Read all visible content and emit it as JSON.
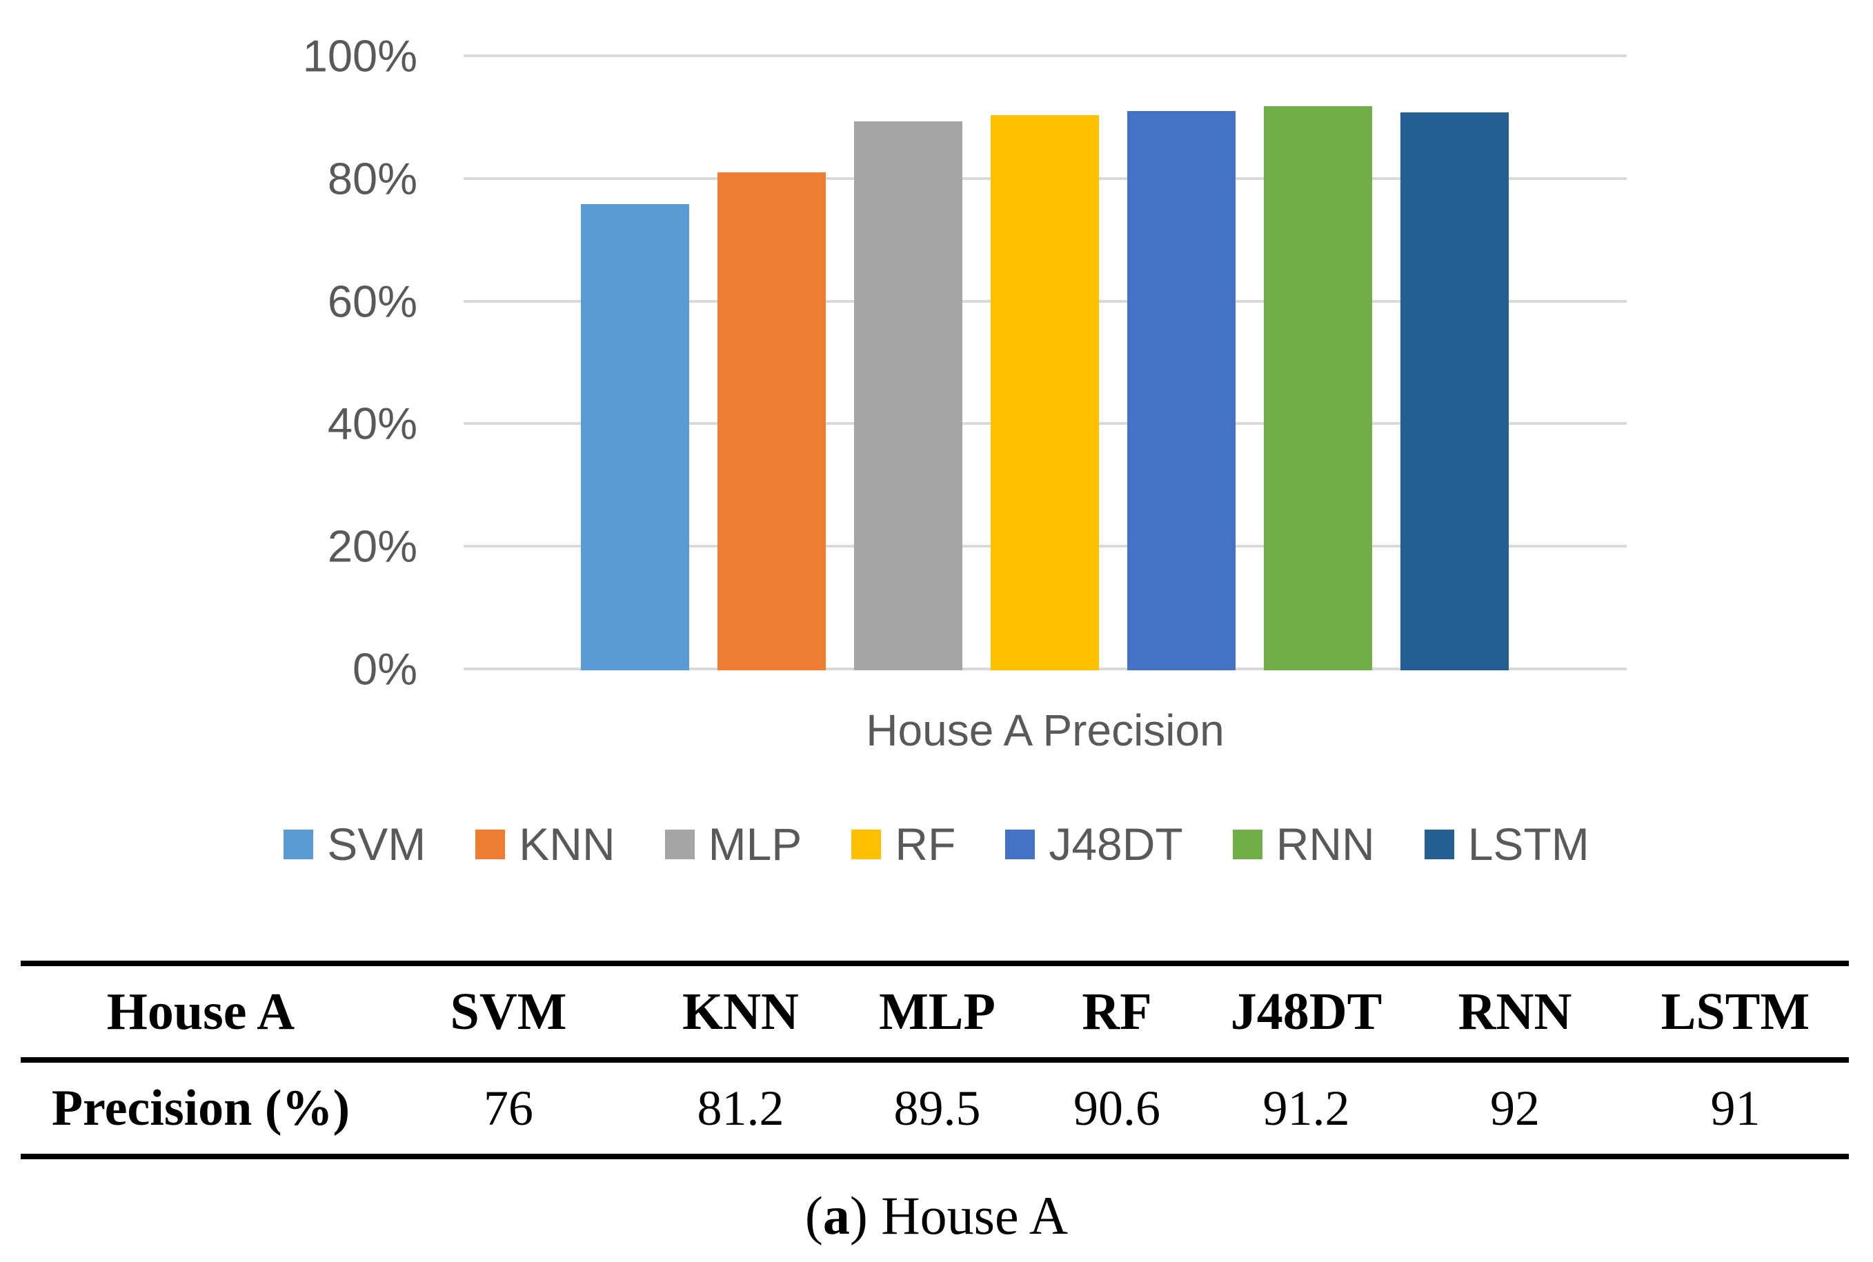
{
  "chart": {
    "title": "House A Precision",
    "text_color": "#595959",
    "gridline_color": "#D9D9D9",
    "y_axis": {
      "tick_values": [
        100,
        80,
        60,
        40,
        20,
        0
      ],
      "tick_labels": [
        "100%",
        "80%",
        "60%",
        "40%",
        "20%",
        "0%"
      ]
    },
    "series": [
      {
        "label": "SVM",
        "value": 76,
        "color": "#5B9BD5"
      },
      {
        "label": "KNN",
        "value": 81.2,
        "color": "#ED7D31"
      },
      {
        "label": "MLP",
        "value": 89.5,
        "color": "#A5A5A5"
      },
      {
        "label": "RF",
        "value": 90.6,
        "color": "#FFC000"
      },
      {
        "label": "J48DT",
        "value": 91.2,
        "color": "#4472C4"
      },
      {
        "label": "RNN",
        "value": 92,
        "color": "#70AD47"
      },
      {
        "label": "LSTM",
        "value": 91,
        "color": "#255E91"
      }
    ]
  },
  "chart_data": {
    "type": "bar",
    "title": "House A Precision",
    "categories": [
      "SVM",
      "KNN",
      "MLP",
      "RF",
      "J48DT",
      "RNN",
      "LSTM"
    ],
    "values": [
      76,
      81.2,
      89.5,
      90.6,
      91.2,
      92,
      91
    ],
    "xlabel": "House A Precision",
    "ylabel": "",
    "ylim": [
      0,
      100
    ],
    "ytick_format": "percent",
    "yticks": [
      0,
      20,
      40,
      60,
      80,
      100
    ],
    "grid": true,
    "legend_position": "bottom",
    "series_colors": [
      "#5B9BD5",
      "#ED7D31",
      "#A5A5A5",
      "#FFC000",
      "#4472C4",
      "#70AD47",
      "#255E91"
    ]
  },
  "table": {
    "headers": [
      "House A",
      "SVM",
      "KNN",
      "MLP",
      "RF",
      "J48DT",
      "RNN",
      "LSTM"
    ],
    "rows": [
      {
        "label": "Precision (%)",
        "values": [
          "76",
          "81.2",
          "89.5",
          "90.6",
          "91.2",
          "92",
          "91"
        ]
      }
    ]
  },
  "caption": {
    "paren_open": "(",
    "letter": "a",
    "rest": ") House A"
  }
}
